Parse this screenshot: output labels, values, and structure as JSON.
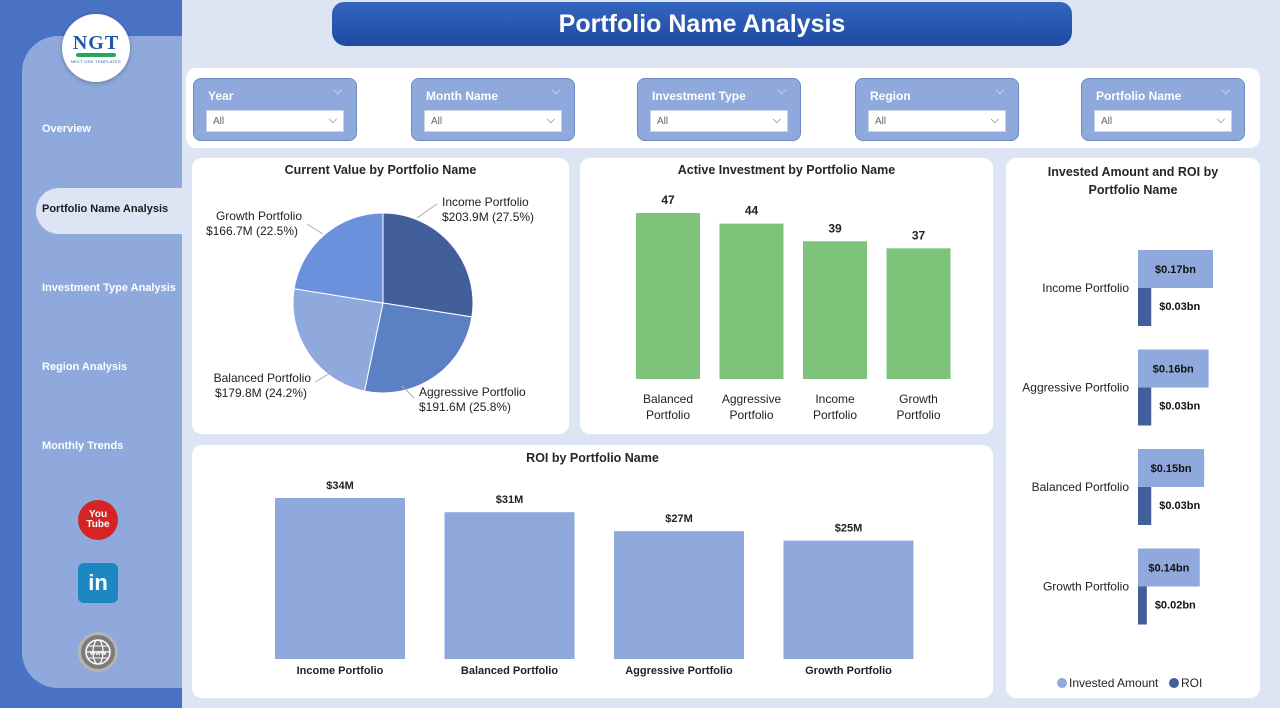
{
  "header": {
    "title": "Portfolio Name Analysis"
  },
  "logo": {
    "text": "NGT",
    "subtext": "NEXT GEN TEMPLATES"
  },
  "sidebar": {
    "items": [
      {
        "label": "Overview"
      },
      {
        "label": "Portfolio Name Analysis",
        "active": true
      },
      {
        "label": "Investment Type Analysis"
      },
      {
        "label": "Region Analysis"
      },
      {
        "label": "Monthly Trends"
      }
    ],
    "social": [
      {
        "icon": "youtube-icon",
        "line1": "You",
        "line2": "Tube"
      },
      {
        "icon": "linkedin-icon",
        "text": "in"
      },
      {
        "icon": "globe-icon",
        "text": "www"
      }
    ]
  },
  "filters": [
    {
      "label": "Year",
      "value": "All"
    },
    {
      "label": "Month Name",
      "value": "All"
    },
    {
      "label": "Investment Type",
      "value": "All"
    },
    {
      "label": "Region",
      "value": "All"
    },
    {
      "label": "Portfolio Name",
      "value": "All"
    }
  ],
  "colors": {
    "accent": "#4a72c4",
    "pie": [
      "#425f9c",
      "#5c80c4",
      "#8fa9dc",
      "#6b90dc"
    ],
    "bar_green": "#7dc47a",
    "bar_blue": "#8fa9dc",
    "invested": "#8fa9dc",
    "roi": "#425f9c"
  },
  "charts": {
    "current_value": {
      "title": "Current Value by Portfolio Name",
      "chart_data": {
        "type": "pie",
        "slices": [
          {
            "name": "Income Portfolio",
            "value": 203.9,
            "value_label": "$203.9M",
            "percent": "27.5%"
          },
          {
            "name": "Aggressive Portfolio",
            "value": 191.6,
            "value_label": "$191.6M",
            "percent": "25.8%"
          },
          {
            "name": "Balanced Portfolio",
            "value": 179.8,
            "value_label": "$179.8M",
            "percent": "24.2%"
          },
          {
            "name": "Growth Portfolio",
            "value": 166.7,
            "value_label": "$166.7M",
            "percent": "22.5%"
          }
        ]
      }
    },
    "active_investment": {
      "title": "Active Investment by Portfolio Name",
      "chart_data": {
        "type": "bar",
        "categories": [
          [
            "Balanced",
            "Portfolio"
          ],
          [
            "Aggressive",
            "Portfolio"
          ],
          [
            "Income",
            "Portfolio"
          ],
          [
            "Growth",
            "Portfolio"
          ]
        ],
        "values": [
          47,
          44,
          39,
          37
        ],
        "value_labels": [
          "47",
          "44",
          "39",
          "37"
        ],
        "ylim": [
          0,
          55
        ]
      }
    },
    "roi": {
      "title": "ROI by Portfolio Name",
      "chart_data": {
        "type": "bar",
        "categories": [
          "Income Portfolio",
          "Balanced Portfolio",
          "Aggressive Portfolio",
          "Growth Portfolio"
        ],
        "values": [
          34,
          31,
          27,
          25
        ],
        "value_labels": [
          "$34M",
          "$31M",
          "$27M",
          "$25M"
        ],
        "ylim": [
          0,
          40
        ]
      }
    },
    "invested_roi": {
      "title_line1": "Invested Amount and ROI by",
      "title_line2": "Portfolio Name",
      "chart_data": {
        "type": "bar",
        "orientation": "horizontal",
        "categories": [
          "Income Portfolio",
          "Aggressive Portfolio",
          "Balanced Portfolio",
          "Growth Portfolio"
        ],
        "series": [
          {
            "name": "Invested Amount",
            "values": [
              0.17,
              0.16,
              0.15,
              0.14
            ],
            "labels": [
              "$0.17bn",
              "$0.16bn",
              "$0.15bn",
              "$0.14bn"
            ]
          },
          {
            "name": "ROI",
            "values": [
              0.03,
              0.03,
              0.03,
              0.02
            ],
            "labels": [
              "$0.03bn",
              "$0.03bn",
              "$0.03bn",
              "$0.02bn"
            ]
          }
        ],
        "legend": "bottom",
        "xlim": [
          0,
          0.17
        ]
      }
    }
  }
}
